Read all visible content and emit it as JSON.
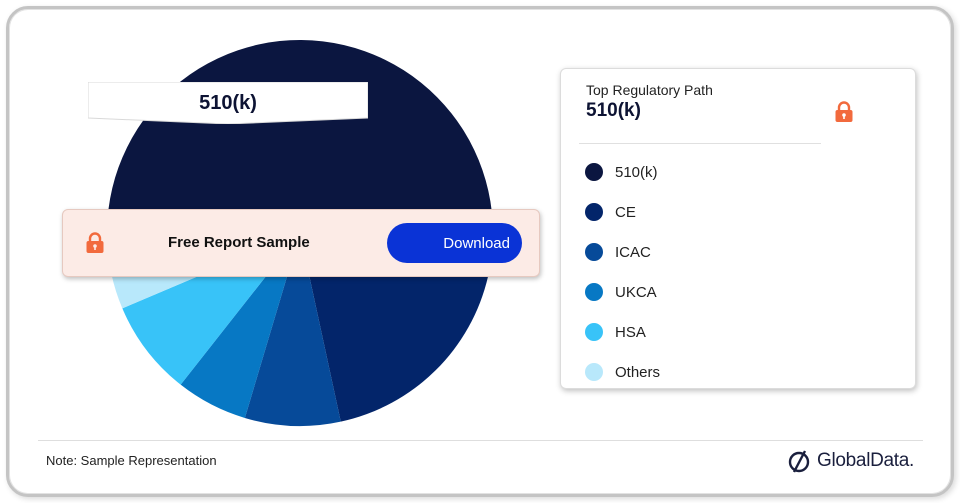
{
  "chart_data": {
    "type": "pie",
    "categories": [
      "510(k)",
      "CE",
      "ICAC",
      "UKCA",
      "HSA",
      "Others"
    ],
    "values": [
      57,
      18,
      8,
      6,
      8,
      3
    ],
    "colors": [
      "#0b1640",
      "#03256a",
      "#064a99",
      "#0778c4",
      "#38c3f8",
      "#b8e8fb"
    ],
    "title": "",
    "legend_placement": "right"
  },
  "callout": {
    "label": "510(k)"
  },
  "banner": {
    "text": "Free Report Sample",
    "button_label": "Download"
  },
  "legend": {
    "title": "Top  Regulatory Path",
    "selected": "510(k)",
    "items": [
      {
        "label": "510(k)",
        "color": "#0b1640"
      },
      {
        "label": "CE",
        "color": "#03256a"
      },
      {
        "label": "ICAC",
        "color": "#064a99"
      },
      {
        "label": "UKCA",
        "color": "#0778c4"
      },
      {
        "label": "HSA",
        "color": "#38c3f8"
      },
      {
        "label": "Others",
        "color": "#b8e8fb"
      }
    ]
  },
  "footer": {
    "note": "Note: Sample Representation",
    "brand": "GlobalData."
  },
  "icons": {
    "lock": "lock-icon",
    "brand_logo": "globaldata-logo-icon"
  },
  "accent_color": "#f26a3d"
}
